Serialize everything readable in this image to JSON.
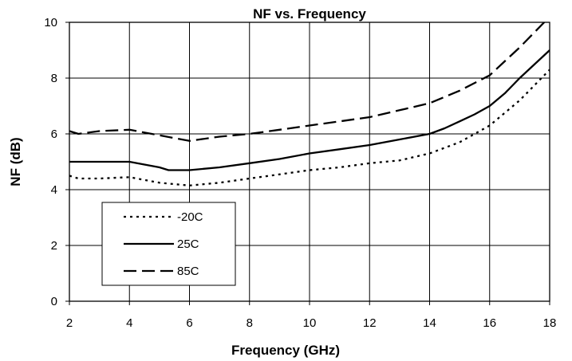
{
  "chart_data": {
    "type": "line",
    "title": "NF vs. Frequency",
    "xlabel": "Frequency (GHz)",
    "ylabel": "NF (dB)",
    "xlim": [
      2,
      18
    ],
    "ylim": [
      0,
      10
    ],
    "xticks": [
      2,
      4,
      6,
      8,
      10,
      12,
      14,
      16,
      18
    ],
    "yticks": [
      0,
      2,
      4,
      6,
      8,
      10
    ],
    "grid": true,
    "legend_position": "lower-left",
    "series": [
      {
        "name": "-20C",
        "style": "dotted",
        "color": "#000000",
        "points": [
          [
            2,
            4.5
          ],
          [
            2.3,
            4.4
          ],
          [
            3,
            4.4
          ],
          [
            4,
            4.45
          ],
          [
            5,
            4.25
          ],
          [
            6,
            4.15
          ],
          [
            7,
            4.25
          ],
          [
            8,
            4.4
          ],
          [
            9,
            4.55
          ],
          [
            10,
            4.7
          ],
          [
            11,
            4.8
          ],
          [
            12,
            4.95
          ],
          [
            13,
            5.05
          ],
          [
            14,
            5.3
          ],
          [
            15,
            5.7
          ],
          [
            16,
            6.3
          ],
          [
            17,
            7.2
          ],
          [
            18,
            8.3
          ]
        ]
      },
      {
        "name": "25C",
        "style": "solid",
        "color": "#000000",
        "points": [
          [
            2,
            5.0
          ],
          [
            3,
            5.0
          ],
          [
            4,
            5.0
          ],
          [
            5,
            4.8
          ],
          [
            5.3,
            4.7
          ],
          [
            6,
            4.7
          ],
          [
            7,
            4.8
          ],
          [
            8,
            4.95
          ],
          [
            9,
            5.1
          ],
          [
            10,
            5.3
          ],
          [
            11,
            5.45
          ],
          [
            12,
            5.6
          ],
          [
            13,
            5.8
          ],
          [
            14,
            6.0
          ],
          [
            14.5,
            6.2
          ],
          [
            15,
            6.45
          ],
          [
            15.5,
            6.7
          ],
          [
            16,
            7.0
          ],
          [
            16.5,
            7.45
          ],
          [
            17,
            8.0
          ],
          [
            17.5,
            8.5
          ],
          [
            18,
            9.0
          ]
        ]
      },
      {
        "name": "85C",
        "style": "dashed",
        "color": "#000000",
        "points": [
          [
            2,
            6.1
          ],
          [
            2.3,
            6.0
          ],
          [
            3,
            6.1
          ],
          [
            4,
            6.15
          ],
          [
            5,
            5.95
          ],
          [
            6,
            5.75
          ],
          [
            7,
            5.9
          ],
          [
            8,
            6.0
          ],
          [
            9,
            6.15
          ],
          [
            10,
            6.3
          ],
          [
            11,
            6.45
          ],
          [
            12,
            6.6
          ],
          [
            13,
            6.85
          ],
          [
            14,
            7.1
          ],
          [
            15,
            7.55
          ],
          [
            16,
            8.1
          ],
          [
            17,
            9.1
          ],
          [
            18,
            10.2
          ]
        ]
      }
    ]
  }
}
